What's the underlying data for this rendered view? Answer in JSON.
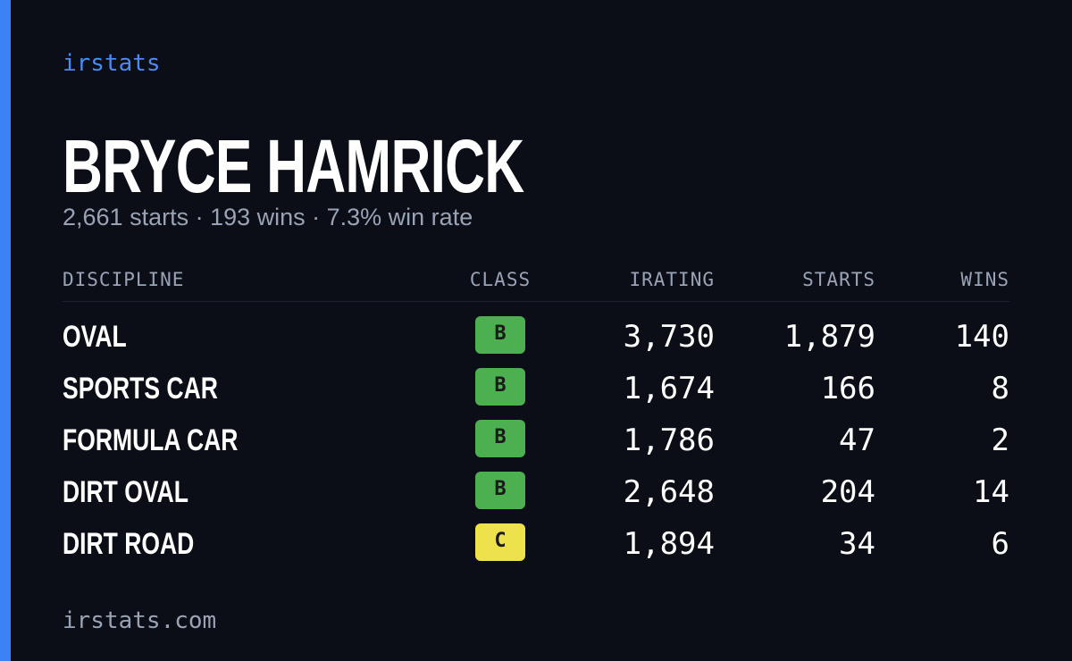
{
  "brand": "irstats",
  "header": {
    "title": "BRYCE HAMRICK",
    "subtitle": "2,661 starts · 193 wins · 7.3% win rate"
  },
  "table": {
    "columns": [
      "DISCIPLINE",
      "CLASS",
      "IRATING",
      "STARTS",
      "WINS"
    ],
    "rows": [
      {
        "discipline": "OVAL",
        "class": "B",
        "class_color": "#4cb050",
        "irating": "3,730",
        "starts": "1,879",
        "wins": "140"
      },
      {
        "discipline": "SPORTS CAR",
        "class": "B",
        "class_color": "#4cb050",
        "irating": "1,674",
        "starts": "166",
        "wins": "8"
      },
      {
        "discipline": "FORMULA CAR",
        "class": "B",
        "class_color": "#4cb050",
        "irating": "1,786",
        "starts": "47",
        "wins": "2"
      },
      {
        "discipline": "DIRT OVAL",
        "class": "B",
        "class_color": "#4cb050",
        "irating": "2,648",
        "starts": "204",
        "wins": "14"
      },
      {
        "discipline": "DIRT ROAD",
        "class": "C",
        "class_color": "#ede14c",
        "irating": "1,894",
        "starts": "34",
        "wins": "6"
      }
    ]
  },
  "footer": "irstats.com"
}
